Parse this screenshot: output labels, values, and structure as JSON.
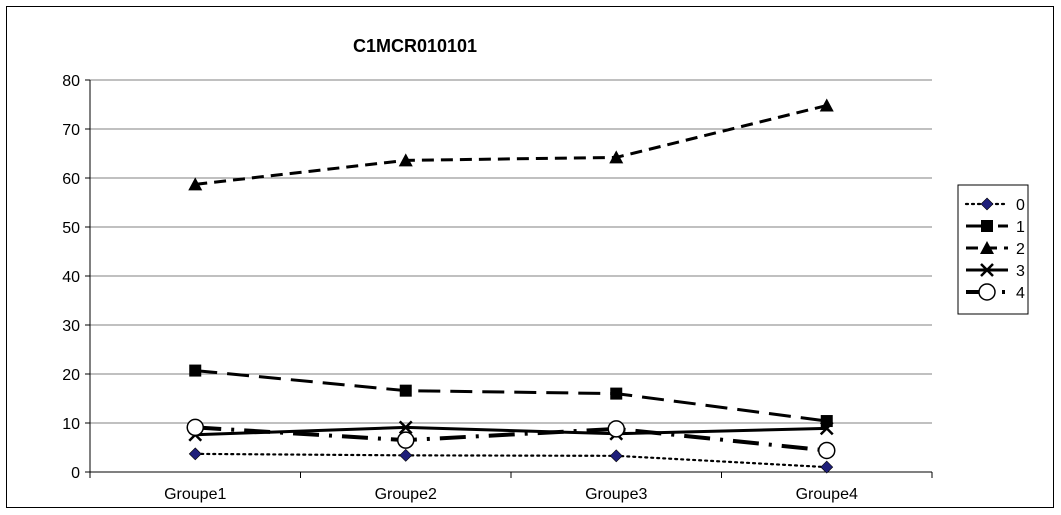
{
  "chart_data": {
    "type": "line",
    "title": "C1MCR010101",
    "categories": [
      "Groupe1",
      "Groupe2",
      "Groupe3",
      "Groupe4"
    ],
    "ylim": [
      0,
      80
    ],
    "yticks": [
      0,
      10,
      20,
      30,
      40,
      50,
      60,
      70,
      80
    ],
    "grid": "horizontal",
    "legend_position": "right",
    "series": [
      {
        "name": "0",
        "values": [
          3.7,
          3.4,
          3.3,
          1.0
        ],
        "line": "dotted",
        "marker": "diamond",
        "marker_color": "#1f1f7a"
      },
      {
        "name": "1",
        "values": [
          20.7,
          16.6,
          16.0,
          10.4
        ],
        "line": "long-dash",
        "marker": "square",
        "marker_color": "#000000"
      },
      {
        "name": "2",
        "values": [
          58.7,
          63.6,
          64.2,
          74.8
        ],
        "line": "dash",
        "marker": "triangle",
        "marker_color": "#000000"
      },
      {
        "name": "3",
        "values": [
          7.6,
          9.1,
          7.8,
          8.9
        ],
        "line": "solid",
        "marker": "x",
        "marker_color": "#000000"
      },
      {
        "name": "4",
        "values": [
          9.1,
          6.5,
          8.8,
          4.4
        ],
        "line": "long-dash-dot",
        "marker": "circle",
        "marker_color": "#ffffff"
      }
    ]
  }
}
